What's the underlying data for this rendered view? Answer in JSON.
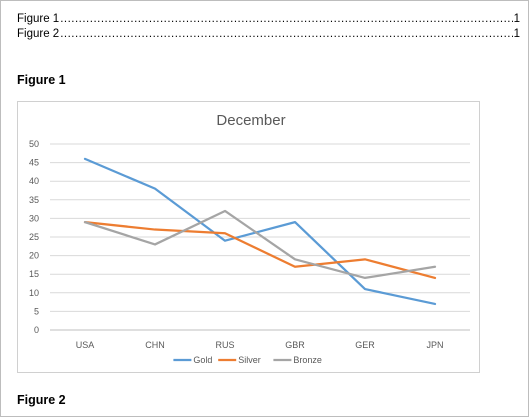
{
  "toc": [
    {
      "label": "Figure 1",
      "page": "1"
    },
    {
      "label": "Figure 2",
      "page": "1"
    }
  ],
  "headings": {
    "figure1": "Figure 1",
    "figure2": "Figure 2"
  },
  "chart_data": {
    "type": "line",
    "title": "December",
    "categories": [
      "USA",
      "CHN",
      "RUS",
      "GBR",
      "GER",
      "JPN"
    ],
    "series": [
      {
        "name": "Gold",
        "values": [
          46,
          38,
          24,
          29,
          11,
          7
        ],
        "color": "#5b9bd5"
      },
      {
        "name": "Silver",
        "values": [
          29,
          27,
          26,
          17,
          19,
          14
        ],
        "color": "#ed7d31"
      },
      {
        "name": "Bronze",
        "values": [
          29,
          23,
          32,
          19,
          14,
          17
        ],
        "color": "#a5a5a5"
      }
    ],
    "ylim": [
      0,
      50
    ],
    "yticks": [
      0,
      5,
      10,
      15,
      20,
      25,
      30,
      35,
      40,
      45,
      50
    ],
    "grid": true,
    "legend_position": "bottom"
  }
}
